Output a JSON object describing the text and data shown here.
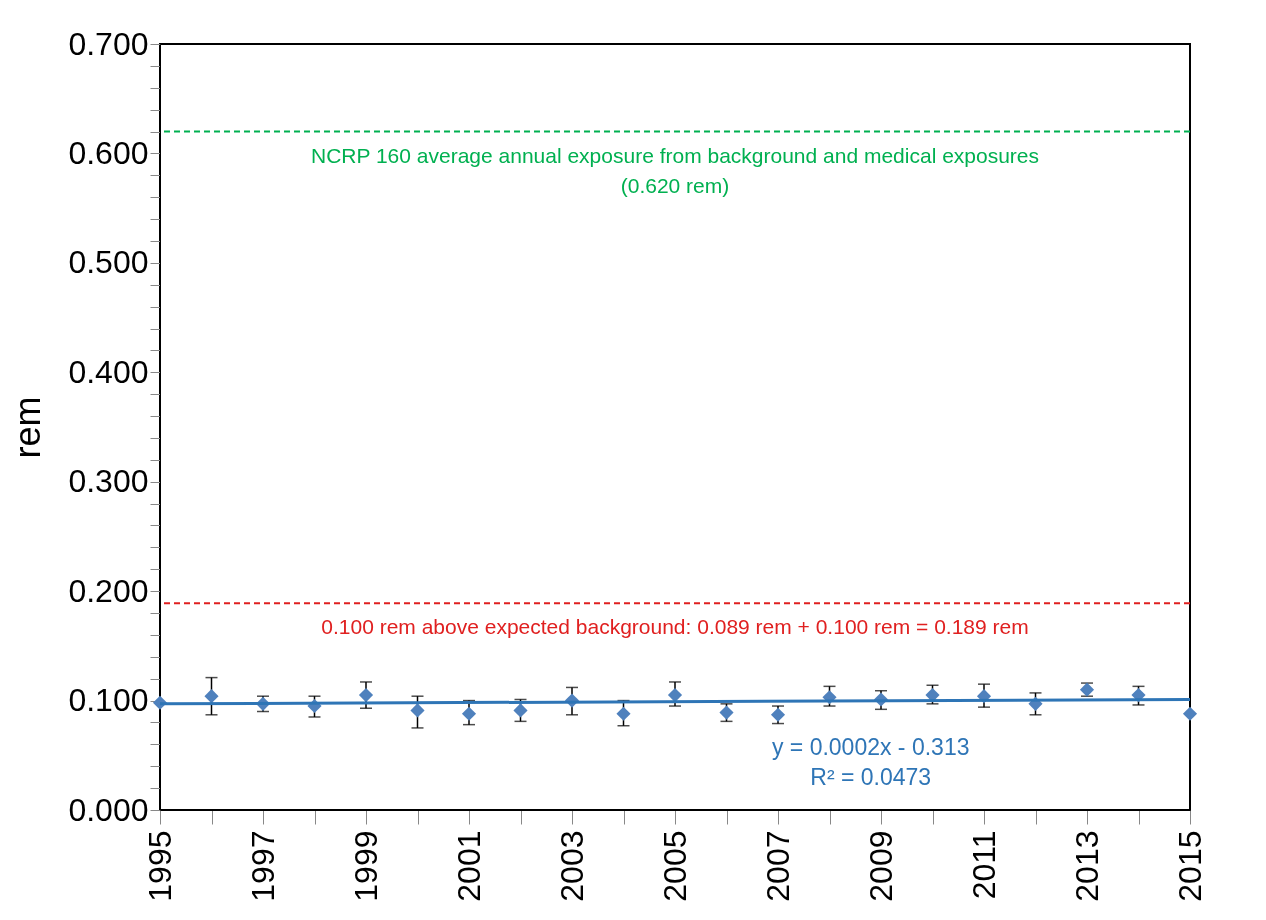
{
  "chart_data": {
    "type": "scatter",
    "ylabel": "rem",
    "x": [
      1995,
      1996,
      1997,
      1998,
      1999,
      2000,
      2001,
      2002,
      2003,
      2004,
      2005,
      2006,
      2007,
      2008,
      2009,
      2010,
      2011,
      2012,
      2013,
      2014,
      2015
    ],
    "series": [
      {
        "color": "#4f81bd",
        "marker": "diamond",
        "values": [
          0.098,
          0.104,
          0.097,
          0.095,
          0.105,
          0.091,
          0.088,
          0.091,
          0.1,
          0.088,
          0.105,
          0.089,
          0.087,
          0.103,
          0.101,
          0.105,
          0.104,
          0.097,
          0.11,
          0.105,
          0.088
        ],
        "errors": [
          null,
          [
            0.087,
            0.121
          ],
          [
            0.09,
            0.104
          ],
          [
            0.085,
            0.104
          ],
          [
            0.093,
            0.117
          ],
          [
            0.075,
            0.104
          ],
          [
            0.078,
            0.1
          ],
          [
            0.081,
            0.101
          ],
          [
            0.087,
            0.112
          ],
          [
            0.077,
            0.1
          ],
          [
            0.095,
            0.117
          ],
          [
            0.081,
            0.097
          ],
          [
            0.079,
            0.095
          ],
          [
            0.095,
            0.113
          ],
          [
            0.092,
            0.109
          ],
          [
            0.097,
            0.114
          ],
          [
            0.094,
            0.115
          ],
          [
            0.087,
            0.107
          ],
          [
            0.104,
            0.116
          ],
          [
            0.096,
            0.113
          ],
          null
        ]
      },
      {
        "type": "line",
        "marker": "none",
        "color": "#2e75b6",
        "x": [
          1995,
          2015
        ],
        "values": [
          0.097,
          0.101
        ]
      }
    ],
    "ref_lines": [
      {
        "axis": "y",
        "value": 0.62,
        "label": "NCRP 160 average annual exposure from background and medical exposures\n(0.620 rem)",
        "color": "#00b050",
        "line_style": "dashed"
      },
      {
        "axis": "y",
        "value": 0.189,
        "label": "0.100 rem above expected background: 0.089 rem + 0.100 rem = 0.189 rem",
        "color": "#e02020",
        "line_style": "dashed"
      }
    ],
    "annotations": [
      "y = 0.0002x - 0.313\nR² = 0.0473"
    ],
    "xlim": [
      1995,
      2015
    ],
    "xticks": [
      1995,
      {
        "value": 1996,
        "label": null
      },
      1997,
      {
        "value": 1998,
        "label": null
      },
      1999,
      {
        "value": 2000,
        "label": null
      },
      2001,
      {
        "value": 2002,
        "label": null
      },
      2003,
      {
        "value": 2004,
        "label": null
      },
      2005,
      {
        "value": 2006,
        "label": null
      },
      2007,
      {
        "value": 2008,
        "label": null
      },
      2009,
      {
        "value": 2010,
        "label": null
      },
      2011,
      {
        "value": 2012,
        "label": null
      },
      2013,
      {
        "value": 2014,
        "label": null
      },
      2015
    ],
    "ylim": [
      0,
      0.7
    ],
    "yticks": [
      {
        "value": 0,
        "label": "0.000"
      },
      {
        "value": 0.02,
        "label": null
      },
      {
        "value": 0.04,
        "label": null
      },
      {
        "value": 0.06,
        "label": null
      },
      {
        "value": 0.08,
        "label": null
      },
      {
        "value": 0.1,
        "label": "0.100"
      },
      {
        "value": 0.12,
        "label": null
      },
      {
        "value": 0.14,
        "label": null
      },
      {
        "value": 0.16,
        "label": null
      },
      {
        "value": 0.18,
        "label": null
      },
      {
        "value": 0.2,
        "label": "0.200"
      },
      {
        "value": 0.22,
        "label": null
      },
      {
        "value": 0.24,
        "label": null
      },
      {
        "value": 0.26,
        "label": null
      },
      {
        "value": 0.28,
        "label": null
      },
      {
        "value": 0.3,
        "label": "0.300"
      },
      {
        "value": 0.32,
        "label": null
      },
      {
        "value": 0.34,
        "label": null
      },
      {
        "value": 0.36,
        "label": null
      },
      {
        "value": 0.38,
        "label": null
      },
      {
        "value": 0.4,
        "label": "0.400"
      },
      {
        "value": 0.42,
        "label": null
      },
      {
        "value": 0.44,
        "label": null
      },
      {
        "value": 0.46,
        "label": null
      },
      {
        "value": 0.48,
        "label": null
      },
      {
        "value": 0.5,
        "label": "0.500"
      },
      {
        "value": 0.52,
        "label": null
      },
      {
        "value": 0.54,
        "label": null
      },
      {
        "value": 0.56,
        "label": null
      },
      {
        "value": 0.58,
        "label": null
      },
      {
        "value": 0.6,
        "label": "0.600"
      },
      {
        "value": 0.62,
        "label": null
      },
      {
        "value": 0.64,
        "label": null
      },
      {
        "value": 0.66,
        "label": null
      },
      {
        "value": 0.68,
        "label": null
      },
      {
        "value": 0.7,
        "label": "0.700"
      }
    ],
    "grid": false
  }
}
